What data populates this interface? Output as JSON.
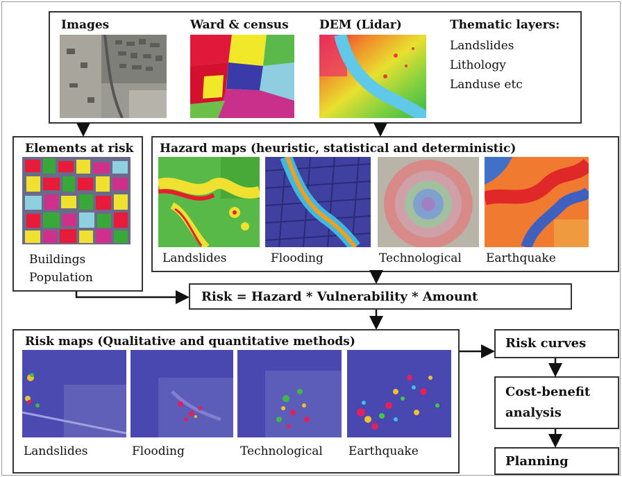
{
  "top_box": {
    "images_label": "Images",
    "ward_label": "Ward & census",
    "dem_label": "DEM (Lidar)",
    "thematic_label": "Thematic layers:",
    "thematic_items": [
      "Landslides",
      "Lithology",
      "Landuse etc"
    ]
  },
  "elements_box": {
    "title": "Elements at risk",
    "items": [
      "Buildings",
      "Population"
    ]
  },
  "hazard_box": {
    "title": "Hazard maps (heuristic, statistical and deterministic)",
    "maps": [
      "Landslides",
      "Flooding",
      "Technological",
      "Earthquake"
    ]
  },
  "formula": "Risk = Hazard * Vulnerability * Amount",
  "risk_box": {
    "title": "Risk maps (Qualitative and quantitative methods)",
    "maps": [
      "Landslides",
      "Flooding",
      "Technological",
      "Earthquake"
    ]
  },
  "flow": {
    "risk_curves": "Risk curves",
    "cost_benefit_1": "Cost-benefit",
    "cost_benefit_2": "analysis",
    "planning": "Planning"
  }
}
